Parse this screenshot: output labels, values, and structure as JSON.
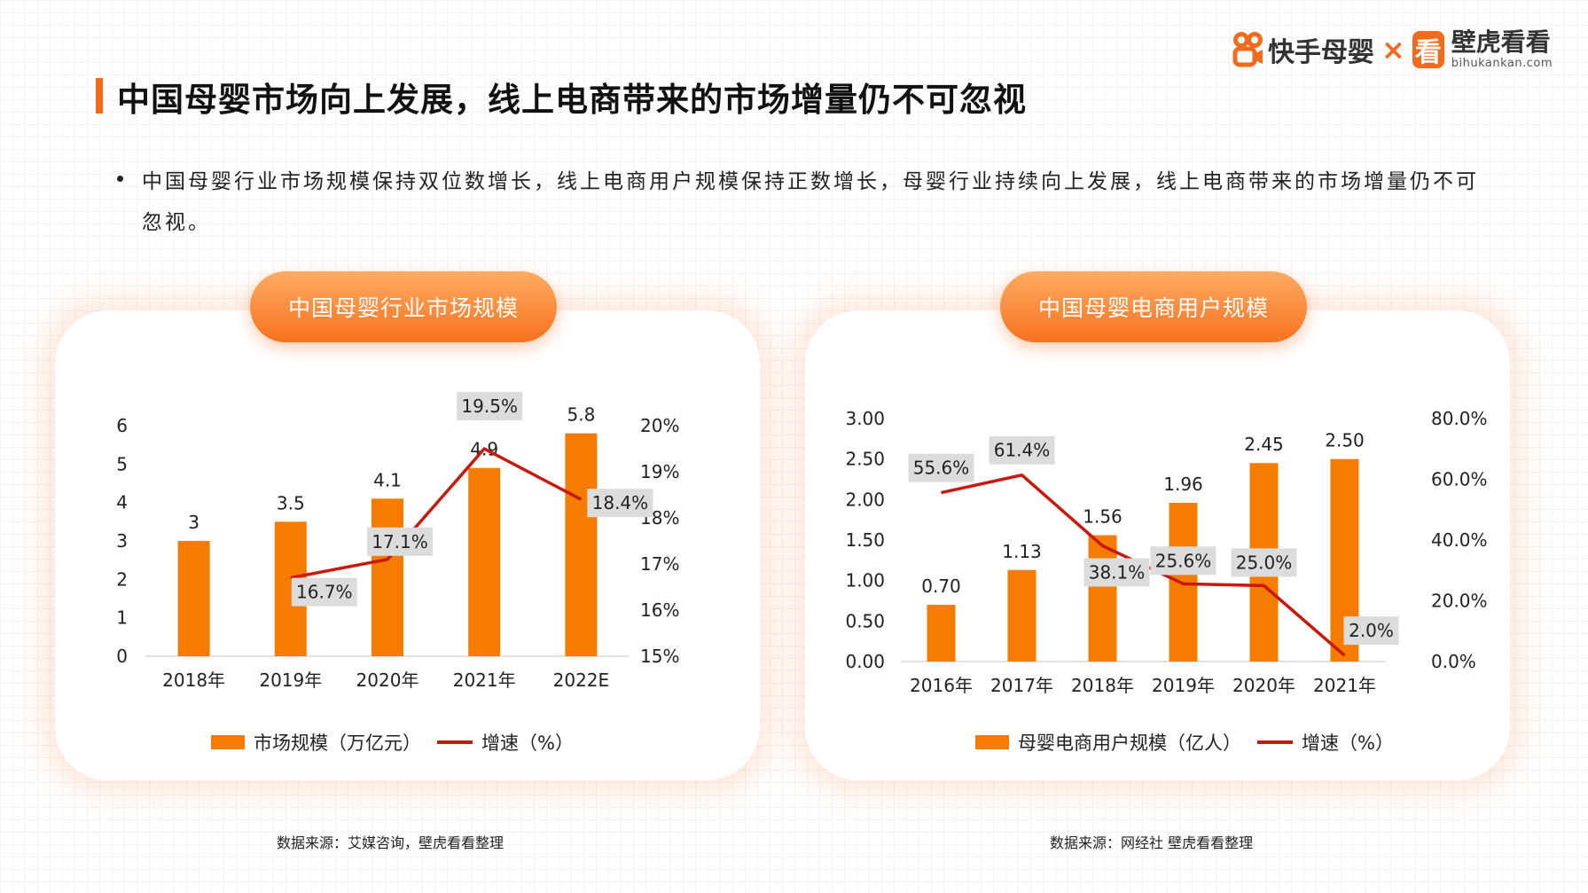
{
  "header": {
    "logo_kuaishou": "快手母婴",
    "logo_separator": "×",
    "logo_bihu_icon": "看",
    "logo_bihu_name": "壁虎看看",
    "logo_bihu_url": "bihukankan.com",
    "title": "中国母婴市场向上发展，线上电商带来的市场增量仍不可忽视"
  },
  "bullet": "中国母婴行业市场规模保持双位数增长，线上电商用户规模保持正数增长，母婴行业持续向上发展，线上电商带来的市场增量仍不可忽视。",
  "colors": {
    "accent": "#f26b1d",
    "bar": "#f57c00",
    "line": "#c9180d",
    "label_box": "#dcdcdc"
  },
  "chart_data": [
    {
      "type": "bar",
      "title": "中国母婴行业市场规模",
      "categories": [
        "2018年",
        "2019年",
        "2020年",
        "2021年",
        "2022E"
      ],
      "series": [
        {
          "name": "市场规模（万亿元）",
          "type": "bar",
          "axis": "left",
          "values": [
            3,
            3.5,
            4.1,
            4.9,
            5.8
          ],
          "labels": [
            "3",
            "3.5",
            "4.1",
            "4.9",
            "5.8"
          ]
        },
        {
          "name": "增速（%）",
          "type": "line",
          "axis": "right",
          "values": [
            null,
            16.7,
            17.1,
            19.5,
            18.4
          ],
          "labels": [
            "",
            "16.7%",
            "17.1%",
            "19.5%",
            "18.4%"
          ]
        }
      ],
      "left_axis": {
        "ticks": [
          "0",
          "1",
          "2",
          "3",
          "4",
          "5",
          "6"
        ],
        "range": [
          0,
          6
        ]
      },
      "right_axis": {
        "ticks": [
          "15%",
          "16%",
          "17%",
          "18%",
          "19%",
          "20%"
        ],
        "range": [
          15,
          20
        ]
      },
      "legend": "bottom",
      "source": "数据来源：艾媒咨询，壁虎看看整理"
    },
    {
      "type": "bar",
      "title": "中国母婴电商用户规模",
      "categories": [
        "2016年",
        "2017年",
        "2018年",
        "2019年",
        "2020年",
        "2021年"
      ],
      "series": [
        {
          "name": "母婴电商用户规模（亿人）",
          "type": "bar",
          "axis": "left",
          "values": [
            0.7,
            1.13,
            1.56,
            1.96,
            2.45,
            2.5
          ],
          "labels": [
            "0.70",
            "1.13",
            "1.56",
            "1.96",
            "2.45",
            "2.50"
          ]
        },
        {
          "name": "增速（%）",
          "type": "line",
          "axis": "right",
          "values": [
            55.6,
            61.4,
            38.1,
            25.6,
            25.0,
            2.0
          ],
          "labels": [
            "55.6%",
            "61.4%",
            "38.1%",
            "25.6%",
            "25.0%",
            "2.0%"
          ]
        }
      ],
      "left_axis": {
        "ticks": [
          "0.00",
          "0.50",
          "1.00",
          "1.50",
          "2.00",
          "2.50",
          "3.00"
        ],
        "range": [
          0,
          3
        ]
      },
      "right_axis": {
        "ticks": [
          "0.0%",
          "20.0%",
          "40.0%",
          "60.0%",
          "80.0%"
        ],
        "range": [
          0,
          80
        ]
      },
      "legend": "bottom",
      "source": "数据来源：网经社 壁虎看看整理"
    }
  ]
}
